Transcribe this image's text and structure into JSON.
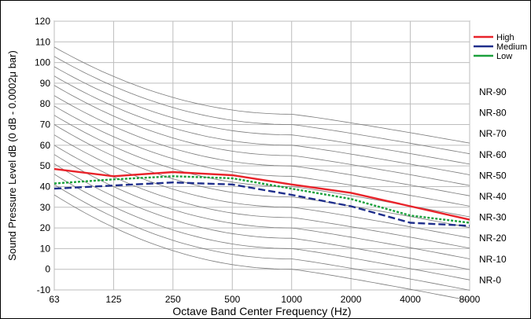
{
  "chart_data": {
    "type": "line",
    "xlabel": "Octave Band Center Frequency (Hz)",
    "ylabel": "Sound Pressure Level dB (0 dB - 0.0002μ bar)",
    "x_categories": [
      "63",
      "125",
      "250",
      "500",
      "1000",
      "2000",
      "4000",
      "8000"
    ],
    "ylim": [
      -10,
      120
    ],
    "yticks": [
      -10,
      0,
      10,
      20,
      30,
      40,
      50,
      60,
      70,
      80,
      90,
      100,
      110,
      120
    ],
    "grid": true,
    "legend_position": "top-right",
    "series": [
      {
        "name": "High",
        "color": "#e8232a",
        "style": "solid",
        "values": [
          48.5,
          45,
          47,
          45.5,
          41,
          37,
          30.5,
          24
        ]
      },
      {
        "name": "Medium",
        "color": "#1f2f8c",
        "style": "dashed",
        "values": [
          39,
          40.5,
          42,
          41,
          36,
          30.5,
          22.5,
          21
        ]
      },
      {
        "name": "Low",
        "color": "#1aa03c",
        "style": "dotted",
        "values": [
          41.5,
          43.5,
          45,
          44,
          39,
          34,
          26,
          22.5
        ]
      }
    ],
    "nr_curves": {
      "labels": [
        "NR-90",
        "NR-80",
        "NR-70",
        "NR-60",
        "NR-50",
        "NR-40",
        "NR-30",
        "NR-20",
        "NR-10",
        "NR-0"
      ],
      "label_values": [
        90,
        80,
        70,
        60,
        50,
        40,
        30,
        20,
        10,
        0
      ],
      "step": 5,
      "start_63": [
        36,
        41,
        46,
        51,
        55.5,
        60,
        65,
        70,
        74.5,
        79,
        84,
        89,
        93.5,
        98,
        103,
        107.5
      ]
    }
  }
}
